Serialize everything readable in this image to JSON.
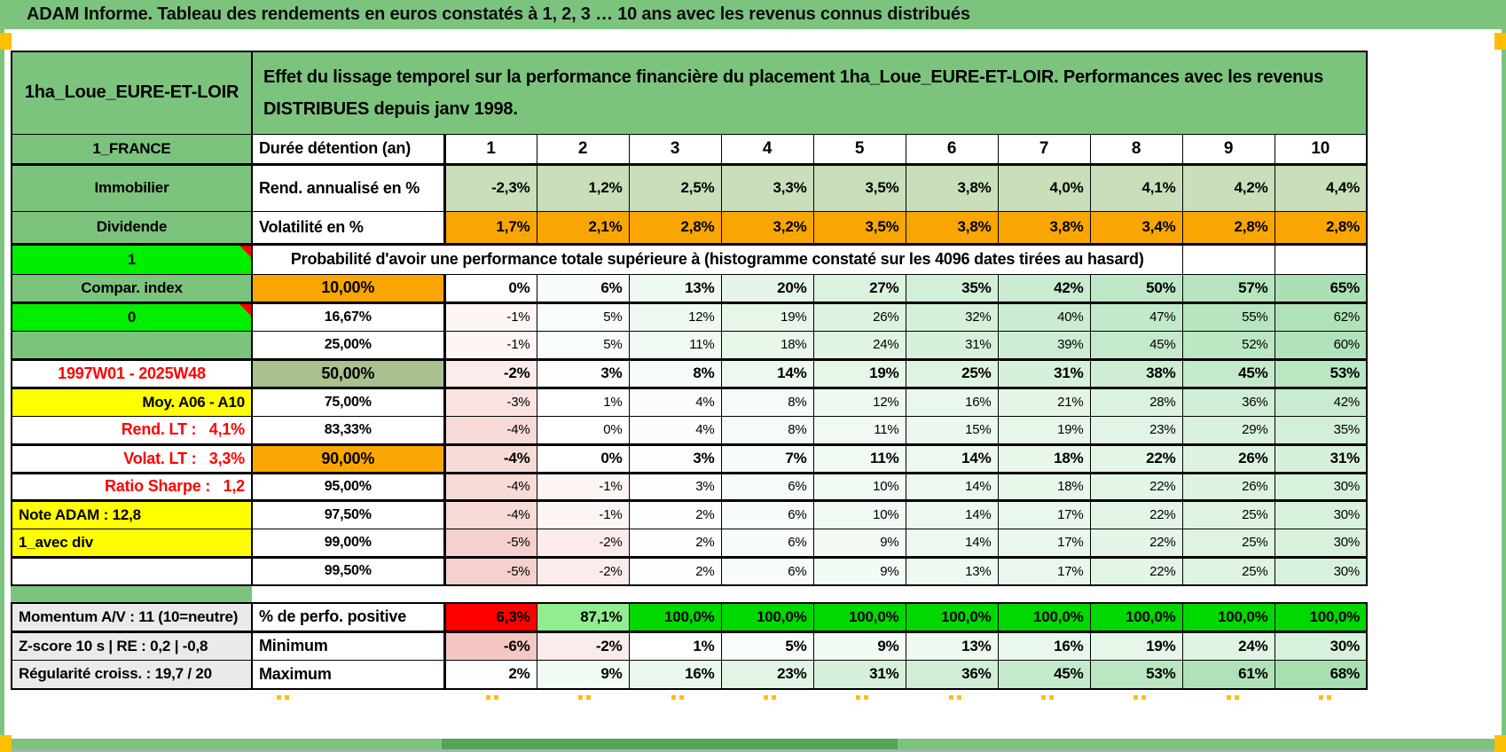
{
  "title": "ADAM Informe. Tableau des rendements en euros constatés à 1, 2, 3 … 10 ans avec les revenus connus distribués",
  "header": {
    "placement": "1ha_Loue_EURE-ET-LOIR",
    "description": "Effet du lissage temporel sur la performance financière du placement 1ha_Loue_EURE-ET-LOIR. Performances avec les revenus DISTRIBUES depuis janv 1998."
  },
  "columns": [
    "1",
    "2",
    "3",
    "4",
    "5",
    "6",
    "7",
    "8",
    "9",
    "10"
  ],
  "palette": {
    "green": "#7CC47E",
    "bright_green": "#00EF00",
    "sage": "#A9C08F",
    "orange": "#F9A603",
    "yellow": "#FFFF00",
    "red": "#FF0000",
    "light_green_row": "#C9DFBA",
    "gray_label": "#EAEAEA",
    "grad_neg": "#F4C7C3",
    "grad_pos": "#A7DFB1",
    "perfo_light": "#90EE90",
    "perfo_full": "#00D800",
    "marker_orange": "#FFBF00",
    "dark_green_bar": "#55A455"
  },
  "rows": [
    {
      "label": "1_FRANCE",
      "label_bg": "green",
      "desc": "Durée détention (an)",
      "desc_align": "left",
      "desc_big": true,
      "vstyle": "head",
      "tb": true
    },
    {
      "label": "Immobilier",
      "label_bg": "green",
      "desc": "Rend. annualisé en %",
      "desc_align": "left",
      "desc_big": true,
      "vstyle": "green",
      "bold": true,
      "values": [
        "-2,3%",
        "1,2%",
        "2,5%",
        "3,3%",
        "3,5%",
        "3,8%",
        "4,0%",
        "4,1%",
        "4,2%",
        "4,4%"
      ]
    },
    {
      "label": "Dividende",
      "label_bg": "green",
      "desc": "Volatilité en %",
      "desc_align": "left",
      "desc_big": true,
      "vstyle": "orange",
      "bold": true,
      "tb": true,
      "values": [
        "1,7%",
        "2,1%",
        "2,8%",
        "3,2%",
        "3,5%",
        "3,8%",
        "3,8%",
        "3,4%",
        "2,8%",
        "2,8%"
      ]
    },
    {
      "label": "1",
      "label_bg": "bright",
      "marker": true,
      "span": "Probabilité d'avoir une performance totale supérieure à (histogramme constaté sur les 4096 dates tirées au hasard)"
    },
    {
      "label": "Compar. index",
      "label_bg": "green",
      "desc": "10,00%",
      "desc_bg": "orange",
      "desc_big": true,
      "bold": true,
      "tb": true,
      "values": [
        "0%",
        "6%",
        "13%",
        "20%",
        "27%",
        "35%",
        "42%",
        "50%",
        "57%",
        "65%"
      ]
    },
    {
      "label": "0",
      "label_bg": "bright",
      "marker": true,
      "desc": "16,67%",
      "values": [
        "-1%",
        "5%",
        "12%",
        "19%",
        "26%",
        "32%",
        "40%",
        "47%",
        "55%",
        "62%"
      ]
    },
    {
      "label": "",
      "label_bg": "green",
      "desc": "25,00%",
      "tb": true,
      "values": [
        "-1%",
        "5%",
        "11%",
        "18%",
        "24%",
        "31%",
        "39%",
        "45%",
        "52%",
        "60%"
      ]
    },
    {
      "label": "1997W01 - 2025W48",
      "label_color": "red",
      "desc": "50,00%",
      "desc_bg": "sage",
      "desc_big": true,
      "bold": true,
      "tb": true,
      "values": [
        "-2%",
        "3%",
        "8%",
        "14%",
        "19%",
        "25%",
        "31%",
        "38%",
        "45%",
        "53%"
      ]
    },
    {
      "label": "Moy. A06 - A10",
      "label_bg": "yellow",
      "label_align": "right",
      "desc": "75,00%",
      "values": [
        "-3%",
        "1%",
        "4%",
        "8%",
        "12%",
        "16%",
        "21%",
        "28%",
        "36%",
        "42%"
      ]
    },
    {
      "label": "Rend. LT :   4,1%",
      "label_color": "red",
      "label_align": "right",
      "desc": "83,33%",
      "tb": true,
      "values": [
        "-4%",
        "0%",
        "4%",
        "8%",
        "11%",
        "15%",
        "19%",
        "23%",
        "29%",
        "35%"
      ]
    },
    {
      "label": "Volat. LT :   3,3%",
      "label_color": "red",
      "label_align": "right",
      "desc": "90,00%",
      "desc_bg": "orange",
      "desc_big": true,
      "bold": true,
      "tb": true,
      "values": [
        "-4%",
        "0%",
        "3%",
        "7%",
        "11%",
        "14%",
        "18%",
        "22%",
        "26%",
        "31%"
      ]
    },
    {
      "label": "Ratio Sharpe :   1,2",
      "label_color": "red",
      "label_align": "right",
      "desc": "95,00%",
      "tb": true,
      "values": [
        "-4%",
        "-1%",
        "3%",
        "6%",
        "10%",
        "14%",
        "18%",
        "22%",
        "26%",
        "30%"
      ]
    },
    {
      "label": "Note ADAM : 12,8",
      "label_bg": "yellow",
      "label_align": "left",
      "desc": "97,50%",
      "values": [
        "-4%",
        "-1%",
        "2%",
        "6%",
        "10%",
        "14%",
        "17%",
        "22%",
        "25%",
        "30%"
      ]
    },
    {
      "label": "1_avec div",
      "label_bg": "yellow",
      "label_align": "left",
      "desc": "99,00%",
      "tb": true,
      "values": [
        "-5%",
        "-2%",
        "2%",
        "6%",
        "9%",
        "14%",
        "17%",
        "22%",
        "25%",
        "30%"
      ]
    },
    {
      "label": "",
      "desc": "99,50%",
      "values": [
        "-5%",
        "-2%",
        "2%",
        "6%",
        "9%",
        "13%",
        "17%",
        "22%",
        "25%",
        "30%"
      ]
    }
  ],
  "footer_rows": [
    {
      "label": "Momentum A/V : 11 (10=neutre)",
      "label_bg": "gray",
      "label_align": "left",
      "desc": "% de perfo. positive",
      "desc_align": "left",
      "desc_big": true,
      "vstyle": "perfo",
      "bold": true,
      "tb": true,
      "values": [
        "6,3%",
        "87,1%",
        "100,0%",
        "100,0%",
        "100,0%",
        "100,0%",
        "100,0%",
        "100,0%",
        "100,0%",
        "100,0%"
      ],
      "value_colors": [
        "#FF0000",
        "#90EE90",
        "#00D800",
        "#00D800",
        "#00D800",
        "#00D800",
        "#00D800",
        "#00D800",
        "#00D800",
        "#00D800"
      ]
    },
    {
      "label": "Z-score 10 s | RE : 0,2 | -0,8",
      "label_bg": "gray",
      "label_align": "left",
      "desc": "Minimum",
      "desc_align": "left",
      "desc_big": true,
      "bold": true,
      "values": [
        "-6%",
        "-2%",
        "1%",
        "5%",
        "9%",
        "13%",
        "16%",
        "19%",
        "24%",
        "30%"
      ]
    },
    {
      "label": "Régularité croiss. : 19,7 / 20",
      "label_bg": "gray",
      "label_align": "left",
      "desc": "Maximum",
      "desc_align": "left",
      "desc_big": true,
      "bold": true,
      "values": [
        "2%",
        "9%",
        "16%",
        "23%",
        "31%",
        "36%",
        "45%",
        "53%",
        "61%",
        "68%"
      ]
    }
  ]
}
